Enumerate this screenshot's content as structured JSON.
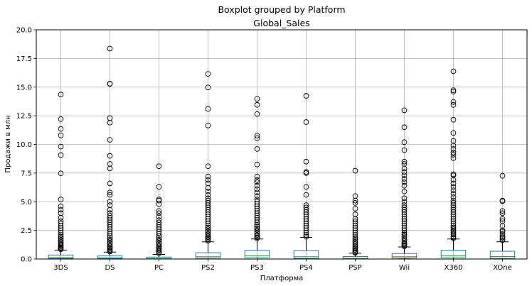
{
  "chart_data": {
    "type": "boxplot",
    "suptitle": "Boxplot grouped by Platform",
    "title": "Global_Sales",
    "xlabel": "Платформа",
    "ylabel": "Продажи в млн",
    "ylim": [
      0,
      20
    ],
    "yticks": [
      "0.0",
      "2.5",
      "5.0",
      "7.5",
      "10.0",
      "12.5",
      "15.0",
      "17.5",
      "20.0"
    ],
    "grid": true,
    "colors": {
      "box": "#1f77b4",
      "median": "#2ca02c",
      "whisker": "#000000",
      "flier": "#000000",
      "grid": "#b0b0b0"
    },
    "categories": [
      "3DS",
      "DS",
      "PC",
      "PS2",
      "PS3",
      "PS4",
      "PSP",
      "Wii",
      "X360",
      "XOne"
    ],
    "boxes": [
      {
        "q1": 0.05,
        "median": 0.12,
        "q3": 0.35,
        "whisker_low": 0.01,
        "whisker_high": 0.78,
        "outliers": [
          14.35,
          12.21,
          11.35,
          10.79,
          9.81,
          9.07,
          7.48,
          5.2,
          4.6,
          4.3,
          4.0,
          3.6,
          3.3,
          3.1,
          2.9,
          2.7,
          2.5,
          2.3,
          2.1,
          1.95,
          1.8,
          1.65,
          1.5,
          1.4,
          1.3,
          1.2,
          1.1,
          1.0,
          0.95,
          0.9,
          0.85
        ]
      },
      {
        "q1": 0.05,
        "median": 0.11,
        "q3": 0.27,
        "whisker_low": 0.01,
        "whisker_high": 0.6,
        "outliers": [
          18.36,
          15.3,
          15.28,
          12.3,
          11.9,
          10.4,
          9.0,
          8.3,
          7.9,
          6.6,
          5.8,
          5.6,
          5.0,
          4.7,
          4.3,
          4.0,
          3.8,
          3.6,
          3.4,
          3.2,
          3.0,
          2.8,
          2.6,
          2.4,
          2.2,
          2.0,
          1.85,
          1.7,
          1.55,
          1.4,
          1.25,
          1.1,
          1.0,
          0.9,
          0.8,
          0.7,
          0.65
        ]
      },
      {
        "q1": 0.02,
        "median": 0.05,
        "q3": 0.17,
        "whisker_low": 0.0,
        "whisker_high": 0.4,
        "outliers": [
          8.1,
          6.3,
          5.2,
          5.1,
          4.8,
          4.2,
          4.0,
          3.7,
          3.4,
          3.2,
          3.0,
          2.8,
          2.6,
          2.4,
          2.2,
          2.0,
          1.85,
          1.7,
          1.55,
          1.4,
          1.25,
          1.1,
          1.0,
          0.9,
          0.8,
          0.7,
          0.6,
          0.5
        ]
      },
      {
        "q1": 0.08,
        "median": 0.2,
        "q3": 0.55,
        "whisker_low": 0.0,
        "whisker_high": 1.5,
        "outliers": [
          16.15,
          14.97,
          13.1,
          11.65,
          8.1,
          7.2,
          6.9,
          6.6,
          6.2,
          5.9,
          5.6,
          5.3,
          5.1,
          4.9,
          4.7,
          4.5,
          4.3,
          4.1,
          3.9,
          3.7,
          3.5,
          3.3,
          3.1,
          2.9,
          2.75,
          2.6,
          2.45,
          2.3,
          2.15,
          2.0,
          1.9,
          1.8,
          1.7,
          1.6
        ]
      },
      {
        "q1": 0.11,
        "median": 0.28,
        "q3": 0.76,
        "whisker_low": 0.0,
        "whisker_high": 1.75,
        "outliers": [
          13.98,
          13.45,
          12.65,
          10.77,
          10.55,
          9.6,
          8.25,
          7.2,
          6.9,
          6.7,
          6.4,
          6.1,
          5.8,
          5.5,
          5.2,
          5.0,
          4.8,
          4.6,
          4.4,
          4.2,
          4.0,
          3.8,
          3.6,
          3.4,
          3.2,
          3.0,
          2.85,
          2.7,
          2.55,
          2.4,
          2.25,
          2.1,
          2.0,
          1.9,
          1.8
        ]
      },
      {
        "q1": 0.06,
        "median": 0.2,
        "q3": 0.73,
        "whisker_low": 0.01,
        "whisker_high": 1.9,
        "outliers": [
          14.24,
          11.95,
          8.5,
          7.6,
          7.5,
          6.3,
          5.6,
          4.7,
          4.5,
          4.3,
          4.1,
          3.9,
          3.7,
          3.5,
          3.3,
          3.1,
          2.9,
          2.7,
          2.5,
          2.3,
          2.1,
          1.95
        ]
      },
      {
        "q1": 0.02,
        "median": 0.07,
        "q3": 0.22,
        "whisker_low": 0.0,
        "whisker_high": 0.5,
        "outliers": [
          7.7,
          5.5,
          5.1,
          4.9,
          4.4,
          3.9,
          3.5,
          3.3,
          3.1,
          2.9,
          2.7,
          2.5,
          2.3,
          2.1,
          1.9,
          1.75,
          1.6,
          1.45,
          1.3,
          1.15,
          1.0,
          0.9,
          0.8,
          0.7,
          0.6,
          0.55
        ]
      },
      {
        "q1": 0.09,
        "median": 0.2,
        "q3": 0.48,
        "whisker_low": 0.01,
        "whisker_high": 1.05,
        "outliers": [
          12.98,
          11.5,
          10.2,
          9.5,
          8.5,
          8.3,
          7.9,
          7.6,
          7.3,
          7.0,
          6.7,
          6.4,
          5.9,
          5.3,
          5.0,
          4.7,
          4.5,
          4.3,
          4.1,
          3.9,
          3.7,
          3.5,
          3.3,
          3.1,
          2.9,
          2.7,
          2.5,
          2.3,
          2.15,
          2.0,
          1.85,
          1.7,
          1.55,
          1.4,
          1.3,
          1.2,
          1.1
        ]
      },
      {
        "q1": 0.11,
        "median": 0.28,
        "q3": 0.77,
        "whisker_low": 0.0,
        "whisker_high": 1.75,
        "outliers": [
          16.38,
          14.73,
          14.6,
          13.7,
          13.45,
          12.15,
          11.0,
          10.3,
          9.9,
          9.6,
          9.3,
          9.1,
          8.8,
          7.4,
          7.3,
          6.9,
          6.6,
          6.3,
          6.0,
          5.7,
          5.4,
          5.1,
          4.9,
          4.7,
          4.5,
          4.3,
          4.1,
          3.9,
          3.7,
          3.5,
          3.3,
          3.1,
          2.9,
          2.75,
          2.6,
          2.45,
          2.3,
          2.15,
          2.0,
          1.9,
          1.8
        ]
      },
      {
        "q1": 0.07,
        "median": 0.22,
        "q3": 0.68,
        "whisker_low": 0.01,
        "whisker_high": 1.5,
        "outliers": [
          7.26,
          5.1,
          5.05,
          4.2,
          4.0,
          3.5,
          3.3,
          2.9,
          2.5,
          2.4,
          2.2,
          2.0,
          1.9,
          1.8,
          1.65
        ]
      }
    ]
  }
}
